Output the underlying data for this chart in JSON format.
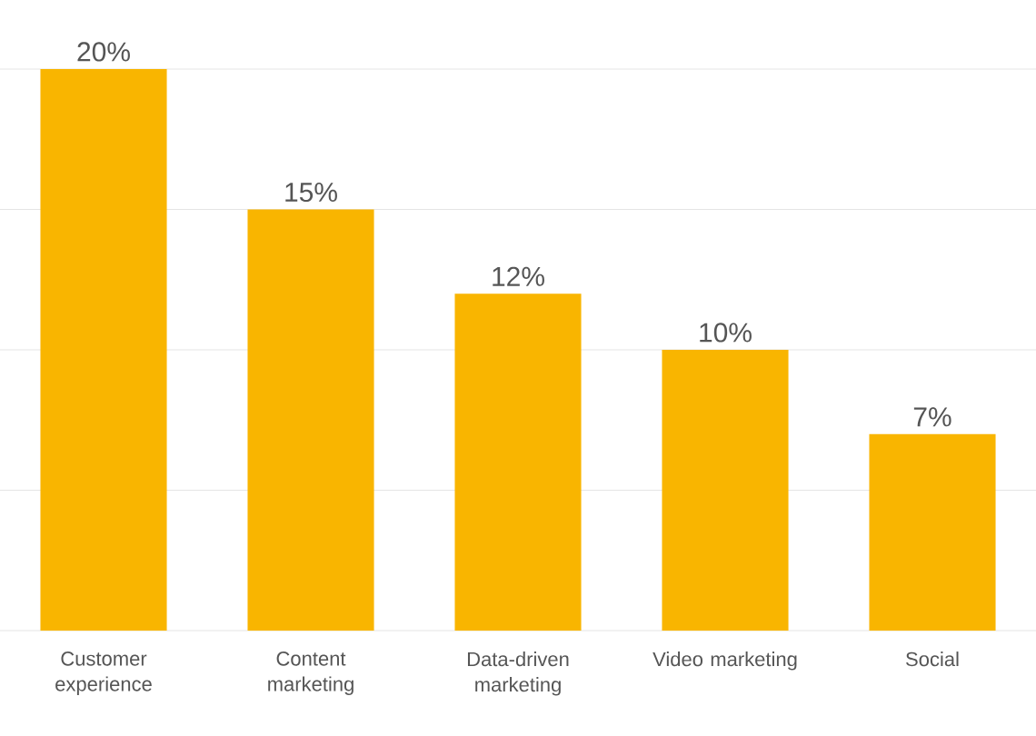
{
  "chart_data": {
    "type": "bar",
    "categories": [
      "Customer experience",
      "Content marketing",
      "Data-driven marketing",
      "Video marketing",
      "Social"
    ],
    "values": [
      20,
      15,
      12,
      10,
      7
    ],
    "value_labels": [
      "20%",
      "15%",
      "12%",
      "10%",
      "7%"
    ],
    "color": "#f9b500",
    "ylim": [
      0,
      20
    ],
    "yticks": [
      {
        "value": 0,
        "label": null
      },
      {
        "value": 5,
        "label": null
      },
      {
        "value": 10,
        "label": null
      },
      {
        "value": 15,
        "label": null
      },
      {
        "value": 20,
        "label": null
      }
    ],
    "grid": "y",
    "tick_labels": "x"
  }
}
